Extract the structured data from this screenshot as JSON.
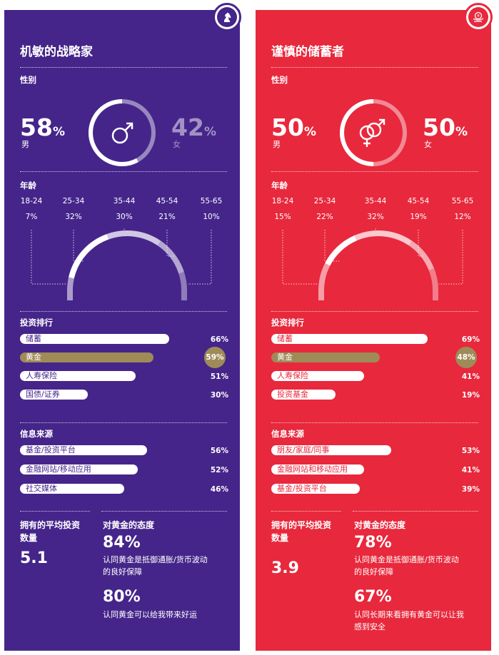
{
  "panels": [
    {
      "title": "机敏的战略家",
      "badge_icon": "chess-knight-icon",
      "bg": "#45258a",
      "bar_text_color": "#45258a",
      "gold": "#9e8b58",
      "gender": {
        "label": "性别",
        "male_value": "58",
        "male_label": "男",
        "female_value": "42",
        "female_label": "女",
        "male_share": 0.58,
        "symbol": "male-symbol-icon"
      },
      "age": {
        "label": "年龄",
        "groups": [
          {
            "range": "18-24",
            "pct": "7%",
            "share": 7
          },
          {
            "range": "25-34",
            "pct": "32%",
            "share": 32
          },
          {
            "range": "35-44",
            "pct": "30%",
            "share": 30
          },
          {
            "range": "45-54",
            "pct": "21%",
            "share": 21
          },
          {
            "range": "55-65",
            "pct": "10%",
            "share": 10
          }
        ]
      },
      "investments": {
        "label": "投资排行",
        "items": [
          {
            "name": "储蓄",
            "value": "66%",
            "share": 66,
            "highlight": false
          },
          {
            "name": "黄金",
            "value": "59%",
            "share": 59,
            "highlight": true
          },
          {
            "name": "人寿保险",
            "value": "51%",
            "share": 51,
            "highlight": false
          },
          {
            "name": "国债/证券",
            "value": "30%",
            "share": 30,
            "highlight": false
          }
        ]
      },
      "sources": {
        "label": "信息来源",
        "items": [
          {
            "name": "基金/投资平台",
            "value": "56%",
            "share": 56
          },
          {
            "name": "金融网站/移动应用",
            "value": "52%",
            "share": 52
          },
          {
            "name": "社交媒体",
            "value": "46%",
            "share": 46
          }
        ]
      },
      "avg": {
        "title_line1": "拥有的平均投资",
        "title_line2": "数量",
        "value": "5.1"
      },
      "attitude": {
        "title": "对黄金的态度",
        "items": [
          {
            "pct": "84%",
            "line1": "认同黄金是抵御通胀/货币波动",
            "line2": "的良好保障"
          },
          {
            "pct": "80%",
            "line1": "认同黄金可以给我带来好运",
            "line2": ""
          }
        ]
      }
    },
    {
      "title": "谨慎的储蓄者",
      "badge_icon": "yen-hand-icon",
      "bg": "#e8283c",
      "bar_text_color": "#e8283c",
      "gold": "#9e8b58",
      "gender": {
        "label": "性别",
        "male_value": "50",
        "male_label": "男",
        "female_value": "50",
        "female_label": "女",
        "male_share": 0.5,
        "symbol": "male-female-symbol-icon"
      },
      "age": {
        "label": "年龄",
        "groups": [
          {
            "range": "18-24",
            "pct": "15%",
            "share": 15
          },
          {
            "range": "25-34",
            "pct": "22%",
            "share": 22
          },
          {
            "range": "35-44",
            "pct": "32%",
            "share": 32
          },
          {
            "range": "45-54",
            "pct": "19%",
            "share": 19
          },
          {
            "range": "55-65",
            "pct": "12%",
            "share": 12
          }
        ]
      },
      "investments": {
        "label": "投资排行",
        "items": [
          {
            "name": "储蓄",
            "value": "69%",
            "share": 69,
            "highlight": false
          },
          {
            "name": "黄金",
            "value": "48%",
            "share": 48,
            "highlight": true
          },
          {
            "name": "人寿保险",
            "value": "41%",
            "share": 41,
            "highlight": false
          },
          {
            "name": "投资基金",
            "value": "19%",
            "share": 19,
            "highlight": false
          }
        ]
      },
      "sources": {
        "label": "信息来源",
        "items": [
          {
            "name": "朋友/家庭/同事",
            "value": "53%",
            "share": 53
          },
          {
            "name": "金融网站和移动应用",
            "value": "41%",
            "share": 41
          },
          {
            "name": "基金/投资平台",
            "value": "39%",
            "share": 39
          }
        ]
      },
      "avg": {
        "title_line1": "拥有的平均投资",
        "title_line2": "数量",
        "value": "3.9"
      },
      "attitude": {
        "title": "对黄金的态度",
        "items": [
          {
            "pct": "78%",
            "line1": "认同黄金是抵御通胀/货币波动",
            "line2": "的良好保障"
          },
          {
            "pct": "67%",
            "line1": "认同长期来看拥有黄金可以让我",
            "line2": "感到安全"
          }
        ]
      }
    }
  ]
}
